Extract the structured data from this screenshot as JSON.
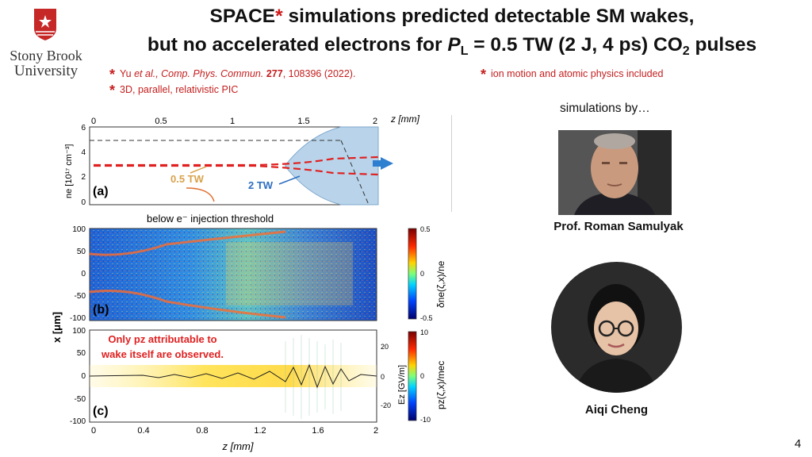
{
  "logo": {
    "line1": "Stony Brook",
    "line2": "University"
  },
  "title": {
    "l1_space": "SPACE",
    "l1_star": "*",
    "l1_rest": " simulations predicted detectable SM wakes,",
    "l2_a": "but no accelerated electrons for ",
    "l2_P": "P",
    "l2_L": "L",
    "l2_b": " = 0.5 TW (2 J, 4 ps) CO",
    "l2_2": "2",
    "l2_c": " pulses"
  },
  "refs": {
    "r1_star": "*",
    "r1_authors": "Yu ",
    "r1_etal": "et al., Comp. Phys. Commun.",
    "r1_vol": " 277",
    "r1_rest": ", 108396 (2022).",
    "r2_star": "*",
    "r2_text": "3D, parallel, relativistic PIC",
    "r3_star": "*",
    "r3_text": "ion motion and atomic physics included"
  },
  "figure": {
    "top_axis_ticks": [
      "0",
      "0.5",
      "1",
      "1.5",
      "2"
    ],
    "top_axis_label": "z [mm]",
    "a_yticks": [
      "6",
      "4",
      "2",
      "0"
    ],
    "a_ylabel": "ne [10¹⁷ cm⁻³]",
    "a_label": "(a)",
    "label_05": "0.5 TW",
    "label_2": "2 TW",
    "injection_note": "below e⁻ injection threshold",
    "b_yticks": [
      "100",
      "50",
      "0",
      "-50",
      "-100"
    ],
    "b_label": "(b)",
    "b_cbar_ticks": [
      "0.5",
      "0",
      "-0.5"
    ],
    "b_cbar_label": "δne(ζ,x)/ne",
    "c_yticks": [
      "100",
      "50",
      "0",
      "-50",
      "-100"
    ],
    "c_label": "(c)",
    "c_ez_ticks": [
      "20",
      "0",
      "-20"
    ],
    "c_ez_label": "Ez [GV/m]",
    "c_cbar_ticks": [
      "10",
      "0",
      "-10"
    ],
    "c_cbar_label": "pz(ζ,x)/mec",
    "c_note1": "Only pz attributable to",
    "c_note2": "wake itself are observed.",
    "x_ylabel": "x [μm]",
    "bottom_ticks": [
      "0",
      "0.4",
      "0.8",
      "1.2",
      "1.6",
      "2"
    ],
    "bottom_label": "z [mm]"
  },
  "people": {
    "sim_by": "simulations by…",
    "person1": "Prof. Roman Samulyak",
    "person2": "Aiqi Cheng"
  },
  "page_number": "4",
  "colors": {
    "accent_red": "#d01919",
    "brand_red": "#b71c1c",
    "envelope_blue": "#b9d4ea"
  }
}
